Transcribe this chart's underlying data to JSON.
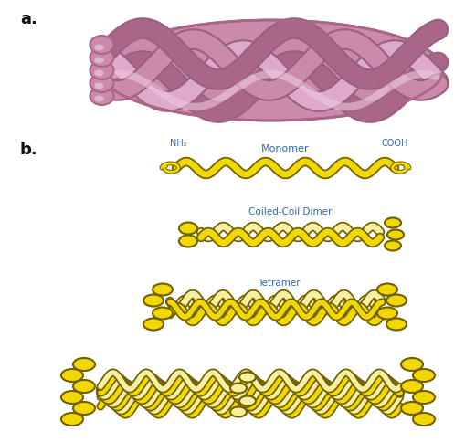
{
  "bg_color": "#ffffff",
  "label_a": "a.",
  "label_b": "b.",
  "pink_main": "#cc8aaa",
  "pink_light": "#ddaacc",
  "pink_lighter": "#eec8dd",
  "pink_dark": "#aa6688",
  "pink_shadow": "#996080",
  "yellow_main": "#f0d800",
  "yellow_dark": "#c0a800",
  "yellow_light": "#f8f0a0",
  "yellow_outline": "#706000",
  "text_color": "#3366aa",
  "label_color": "#111111",
  "monomer_label": "Monomer",
  "dimer_label": "Coiled-Coil Dimer",
  "tetramer_label": "Tetramer",
  "nh2_label": "NH₂",
  "cooh_label": "COOH"
}
